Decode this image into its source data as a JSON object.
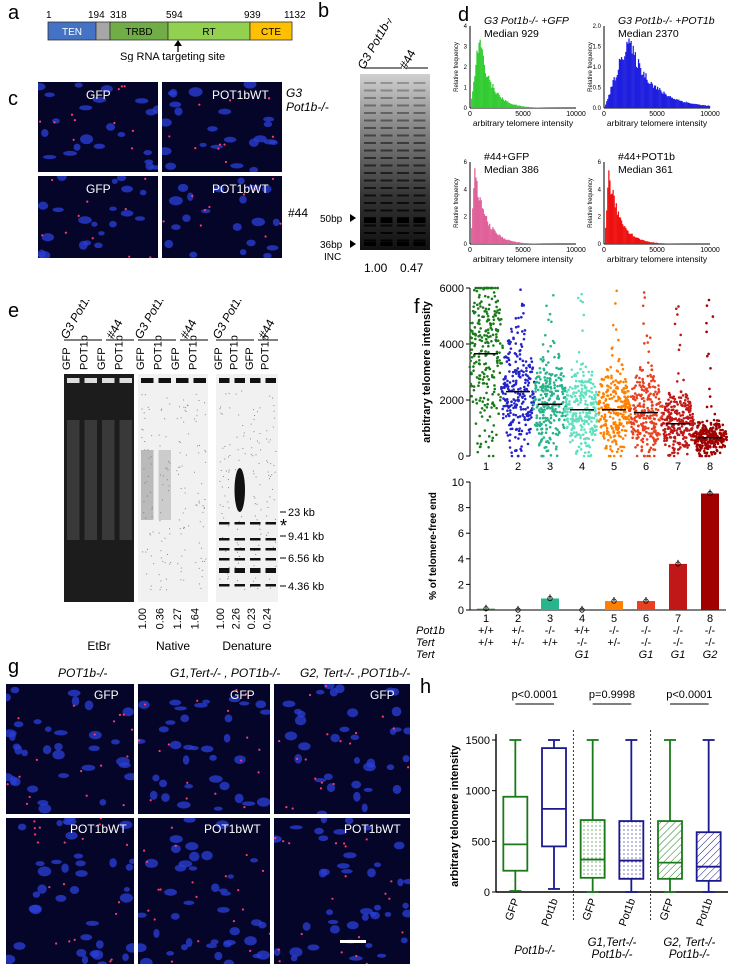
{
  "panels": {
    "a": {
      "label": "a",
      "domains": [
        {
          "name": "TEN",
          "color": "#4472c4"
        },
        {
          "name": "",
          "color": "#a6a6a6"
        },
        {
          "name": "TRBD",
          "color": "#70ad47"
        },
        {
          "name": "RT",
          "color": "#92d050"
        },
        {
          "name": "CTE",
          "color": "#ffc000"
        }
      ],
      "positions": [
        "1",
        "194",
        "318",
        "594",
        "939",
        "1132"
      ],
      "sg_label": "Sg RNA targeting site"
    },
    "b": {
      "label": "b",
      "lane_groups": [
        "G3 Pot1b-/-",
        "#44"
      ],
      "markers": [
        "50bp",
        "36bp",
        "INC"
      ],
      "quant": [
        "1.00",
        "0.47"
      ]
    },
    "c": {
      "label": "c",
      "tags": [
        "GFP",
        "POT1bWT",
        "GFP",
        "POT1bWT"
      ],
      "row_labels": [
        "G3 Pot1b-/-",
        "#44"
      ]
    },
    "d": {
      "label": "d",
      "histograms": [
        {
          "title": "G3 Pot1b-/- +GFP",
          "median": "Median 929",
          "color": "#33cc33",
          "ymax": "4",
          "yticks": [
            "0",
            "1",
            "2",
            "3",
            "4"
          ]
        },
        {
          "title": "G3 Pot1b-/- +POT1b",
          "median": "Median 2370",
          "color": "#1f1fe0",
          "ymax": "2.0",
          "yticks": [
            "0.0",
            "0.5",
            "1.0",
            "1.5",
            "2.0"
          ]
        },
        {
          "title": "#44+GFP",
          "median": "Median 386",
          "color": "#e0609a",
          "ymax": "6",
          "yticks": [
            "0",
            "2",
            "4",
            "6"
          ]
        },
        {
          "title": "#44+POT1b",
          "median": "Median 361",
          "color": "#ee1111",
          "ymax": "6",
          "yticks": [
            "0",
            "2",
            "4",
            "6"
          ]
        }
      ],
      "xticks": [
        "0",
        "5000",
        "10000"
      ],
      "xlabel": "arbitrary telomere intensity",
      "ylabel": "Relative frequency"
    },
    "e": {
      "label": "e",
      "lane_headers": [
        "G3 Pot1b-/-",
        "#44"
      ],
      "lanes": [
        "GFP",
        "POT1b",
        "GFP",
        "POT1b"
      ],
      "gel_labels": [
        "EtBr",
        "Native",
        "Denature"
      ],
      "native_quant": [
        "1.00",
        "0.36",
        "1.27",
        "1.64"
      ],
      "denature_quant": [
        "1.00",
        "2.26",
        "0.23",
        "0.24"
      ],
      "markers": [
        "23 kb",
        "9.41 kb",
        "6.56 kb",
        "4.36 kb"
      ],
      "star": "*"
    },
    "f": {
      "label": "f",
      "top_ylabel": "arbitrary telomere intensity",
      "top_yticks": [
        "0",
        "2000",
        "4000",
        "6000"
      ],
      "bottom_ylabel": "% of telomere-free end",
      "bottom_yticks": [
        "0",
        "2",
        "4",
        "6",
        "8",
        "10"
      ],
      "categories": [
        "1",
        "2",
        "3",
        "4",
        "5",
        "6",
        "7",
        "8"
      ],
      "row_names": [
        "Pot1b",
        "Tert",
        "Tert"
      ],
      "pot1b_row": [
        "+/+",
        "+/-",
        "-/-",
        "+/+",
        "-/-",
        "-/-",
        "-/-",
        "-/-"
      ],
      "tert_row": [
        "+/+",
        "+/-",
        "+/+",
        "-/-",
        "+/-",
        "-/-",
        "-/-",
        "-/-"
      ],
      "gen_row": [
        "",
        "",
        "",
        "G1",
        "",
        "G1",
        "G1",
        "G2"
      ]
    },
    "g": {
      "label": "g",
      "col_titles": [
        "POT1b-/-",
        "G1,Tert-/- , POT1b-/-",
        "G2, Tert-/- ,POT1b-/-"
      ],
      "tags": [
        "GFP",
        "GFP",
        "GFP",
        "POT1bWT",
        "POT1bWT",
        "POT1bWT"
      ]
    },
    "h": {
      "label": "h",
      "pvalues": [
        "p<0.0001",
        "p=0.9998",
        "p<0.0001"
      ],
      "ylabel": "arbitrary telomere intensity",
      "yticks": [
        "0",
        "500",
        "1000",
        "1500"
      ],
      "xlabels": [
        "GFP",
        "Pot1b",
        "GFP",
        "Pot1b",
        "GFP",
        "Pot1b"
      ],
      "groups": [
        "Pot1b-/-",
        "G1,Tert-/- Pot1b-/-",
        "G2, Tert-/- Pot1b-/-"
      ]
    }
  },
  "chart_data": [
    {
      "type": "bar",
      "categories": [
        "1",
        "2",
        "3",
        "4",
        "5",
        "6",
        "7",
        "8"
      ],
      "values": [
        0.1,
        0.0,
        0.9,
        0.0,
        0.7,
        0.7,
        3.6,
        9.1
      ],
      "ylabel": "% of telomere-free end",
      "ylim": [
        0,
        10
      ],
      "colors": [
        "#1a7a1a",
        "#2323c8",
        "#28b48c",
        "#60e0c0",
        "#ff8000",
        "#e84020",
        "#c01818",
        "#a00000"
      ]
    },
    {
      "type": "scatter",
      "categories": [
        "1",
        "2",
        "3",
        "4",
        "5",
        "6",
        "7",
        "8"
      ],
      "medians": [
        3650,
        2300,
        1850,
        1650,
        1650,
        1550,
        1150,
        650
      ],
      "ylabel": "arbitrary telomere intensity",
      "ylim": [
        0,
        6000
      ],
      "colors": [
        "#1a7a1a",
        "#2323c8",
        "#28b48c",
        "#60e0c0",
        "#ff8000",
        "#e84020",
        "#c01818",
        "#a00000"
      ]
    },
    {
      "type": "box",
      "categories": [
        "GFP",
        "Pot1b",
        "GFP",
        "Pot1b",
        "GFP",
        "Pot1b"
      ],
      "q1": [
        210,
        450,
        140,
        130,
        130,
        110
      ],
      "median": [
        470,
        820,
        320,
        310,
        290,
        250
      ],
      "q3": [
        940,
        1420,
        710,
        700,
        700,
        590
      ],
      "min": [
        10,
        30,
        0,
        0,
        0,
        0
      ],
      "max": [
        1500,
        1500,
        1500,
        1500,
        1500,
        1500
      ],
      "ylabel": "arbitrary telomere intensity",
      "ylim": [
        0,
        1500
      ],
      "colors": [
        "#1a7a1a",
        "#1a1a8c",
        "#1a7a1a",
        "#1a1a8c",
        "#1a7a1a",
        "#1a1a8c"
      ]
    }
  ]
}
